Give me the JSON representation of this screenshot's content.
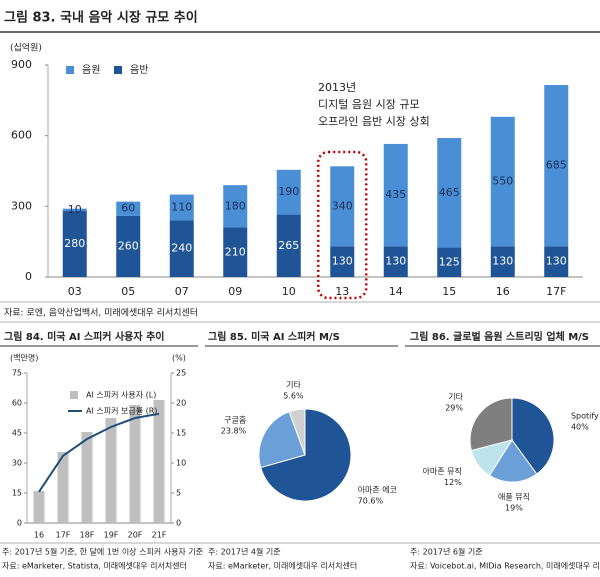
{
  "chart_data": [
    {
      "type": "bar",
      "stacked": true,
      "title": "그림 83. 국내 음악 시장 규모 추이",
      "ylabel": "(십억원)",
      "categories": [
        "03",
        "05",
        "07",
        "09",
        "10",
        "13",
        "14",
        "15",
        "16",
        "17F"
      ],
      "series": [
        {
          "name": "음원",
          "color": "#4a8fd6",
          "values": [
            10,
            60,
            110,
            180,
            190,
            340,
            435,
            465,
            550,
            685
          ]
        },
        {
          "name": "음반",
          "color": "#1f5597",
          "values": [
            280,
            260,
            240,
            210,
            265,
            130,
            130,
            125,
            130,
            130
          ]
        }
      ],
      "ylim": [
        0,
        900
      ],
      "yticks": [
        0,
        300,
        600,
        900
      ],
      "annotation": [
        "2013년",
        "디지털 음원 시장 규모",
        "오프라인 음반 시장 상회"
      ],
      "source": "자료: 로엔, 음악산업백서, 미래에셋대우 리서치센터"
    },
    {
      "type": "bar",
      "title": "그림 84. 미국 AI 스피커 사용자 추이",
      "ylabel": "(백만명)",
      "y2label": "(%)",
      "categories": [
        "16",
        "17F",
        "18F",
        "19F",
        "20F",
        "21F"
      ],
      "series": [
        {
          "name": "AI 스피커 사용자 (L)",
          "type": "bar",
          "color": "#bfbfbf",
          "values": [
            16,
            35.5,
            45.5,
            52.5,
            59,
            61.5
          ]
        },
        {
          "name": "AI 스피커 보급률 (R)",
          "type": "line",
          "axis": "y2",
          "color": "#1f4e79",
          "values": [
            5.2,
            11.2,
            14,
            16,
            17.5,
            18.2
          ]
        }
      ],
      "ylim": [
        0,
        75
      ],
      "yticks": [
        0,
        15,
        30,
        45,
        60,
        75
      ],
      "y2lim": [
        0,
        25
      ],
      "y2ticks": [
        0,
        5,
        10,
        15,
        20,
        25
      ],
      "note": "주: 2017년 5월 기준, 한 달에 1번 이상 스피커 사용자 기준",
      "source": "자료: eMarketer, Statista, 미래에셋대우 리서치센터"
    },
    {
      "type": "pie",
      "title": "그림 85. 미국 AI 스피커 M/S",
      "categories": [
        "아마존 에코",
        "구글홈",
        "기타"
      ],
      "values": [
        70.6,
        23.8,
        5.6
      ],
      "value_labels": [
        "70.6%",
        "23.8%",
        "5.6%"
      ],
      "colors": [
        "#1f5597",
        "#6a9fd8",
        "#d0d0d0"
      ],
      "note": "주: 2017년 4월 기준",
      "source": "자료: eMarketer, 미래에셋대우 리서치센터"
    },
    {
      "type": "pie",
      "title": "그림 86. 글로벌 음원 스트리밍 업체 M/S",
      "categories": [
        "Spotify",
        "애플 뮤직",
        "아마존 뮤직",
        "기타"
      ],
      "values": [
        40,
        19,
        12,
        29
      ],
      "value_labels": [
        "40%",
        "19%",
        "12%",
        "29%"
      ],
      "colors": [
        "#1f5597",
        "#6a9fd8",
        "#bde3ec",
        "#7f7f7f"
      ],
      "note": "주: 2017년 6월 기준",
      "source": "자료: Voicebot.ai, MIDia Research, 미래에셋대우 리서치센터"
    }
  ]
}
